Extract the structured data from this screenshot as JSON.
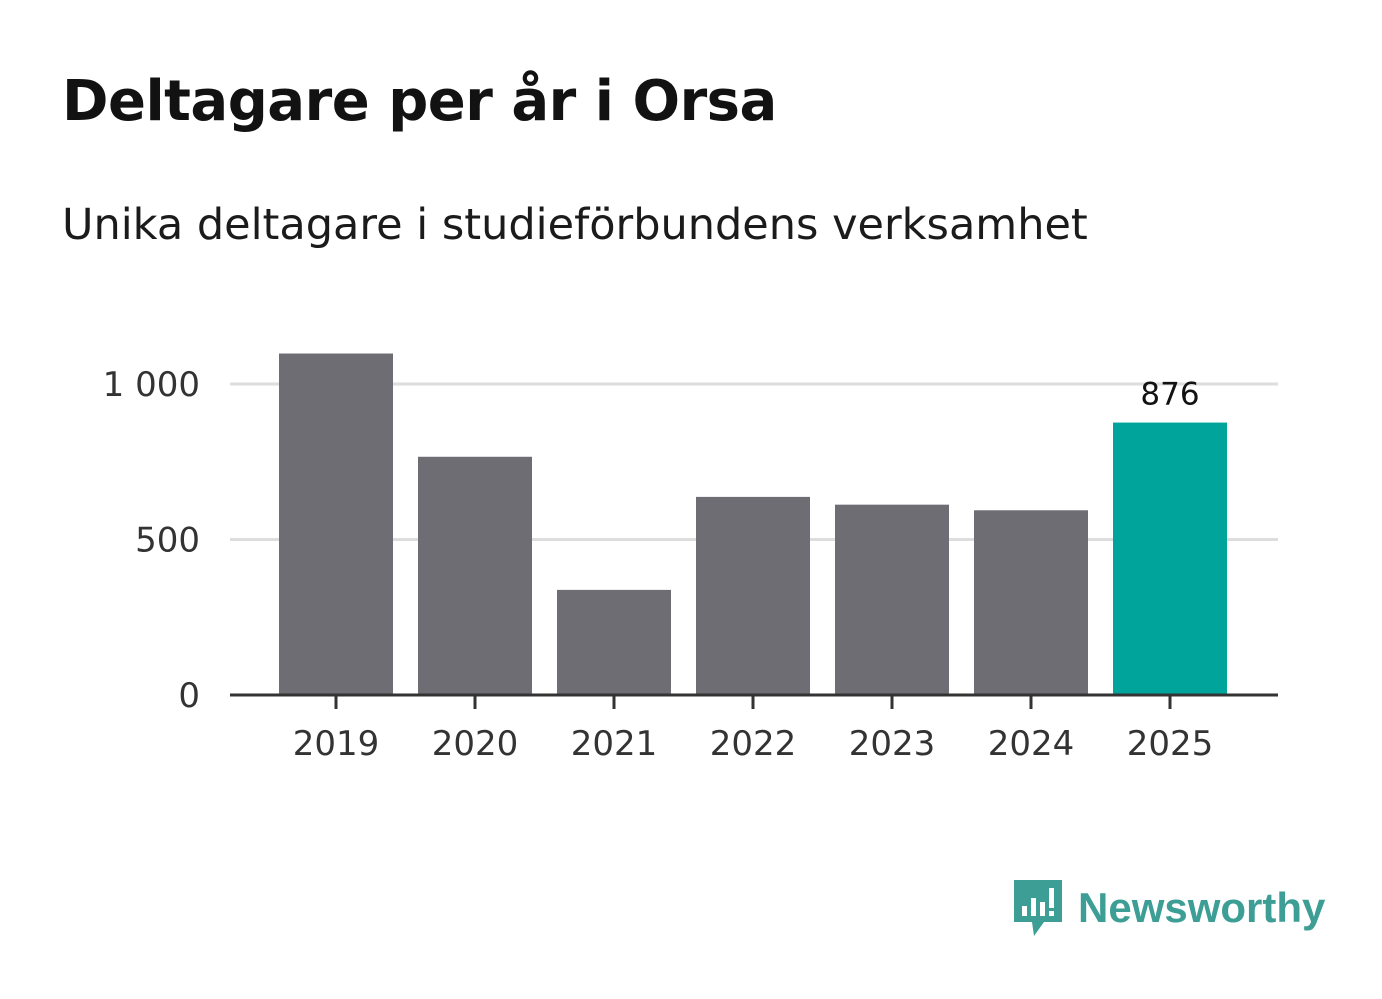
{
  "title": "Deltagare per år i Orsa",
  "subtitle": "Unika deltagare i studieförbundens verksamhet",
  "brand": {
    "name": "Newsworthy",
    "color": "#3d9e96",
    "icon": "newsworthy-logo-icon"
  },
  "colors": {
    "bar": "#6e6d74",
    "highlight": "#00a49a",
    "grid": "#dddddd",
    "axis": "#333333"
  },
  "chart_data": {
    "type": "bar",
    "title": "Deltagare per år i Orsa",
    "subtitle": "Unika deltagare i studieförbundens verksamhet",
    "xlabel": "",
    "ylabel": "",
    "categories": [
      "2019",
      "2020",
      "2021",
      "2022",
      "2023",
      "2024",
      "2025"
    ],
    "values": [
      1098,
      766,
      338,
      637,
      612,
      594,
      876
    ],
    "highlight_index": 6,
    "ylim": [
      0,
      1000
    ],
    "yticks": [
      0,
      500,
      1000
    ],
    "ytick_labels": [
      "0",
      "500",
      "1 000"
    ],
    "grid": true,
    "annotations": [
      {
        "category": "2025",
        "text": "876"
      }
    ]
  }
}
